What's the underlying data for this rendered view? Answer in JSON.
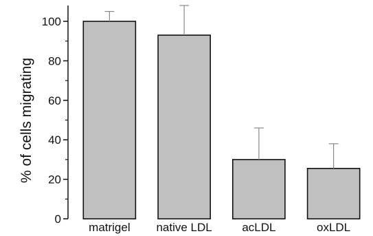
{
  "chart_data": {
    "type": "bar",
    "title": "",
    "xlabel": "",
    "ylabel": "% of cells migrating",
    "categories": [
      "matrigel",
      "native LDL",
      "acLDL",
      "oxLDL"
    ],
    "values": [
      100,
      93,
      30,
      25.5
    ],
    "error_plus": [
      5,
      15,
      16,
      12.5
    ],
    "ylim": [
      0,
      108
    ],
    "yticks": [
      0,
      20,
      40,
      60,
      80,
      100
    ],
    "grid": false,
    "legend": "none",
    "bar_color": "#c0c0c0",
    "edge_color": "#111111"
  }
}
